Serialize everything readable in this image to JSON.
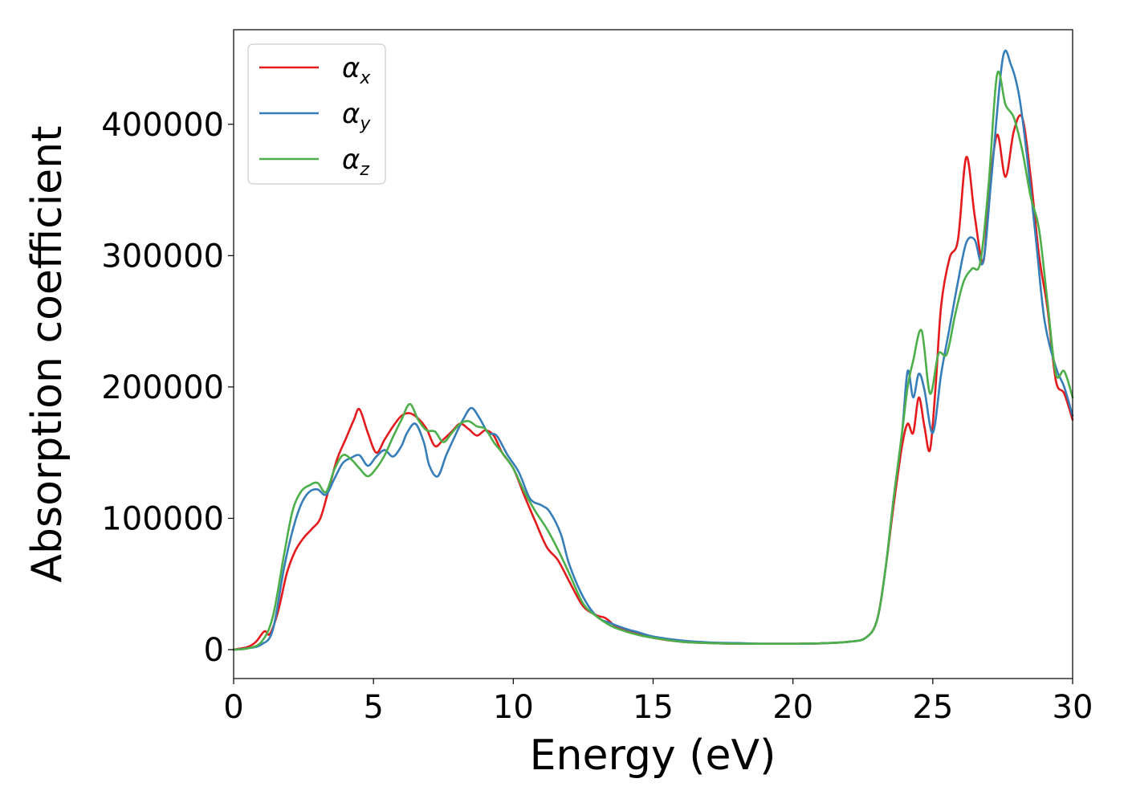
{
  "chart_data": {
    "type": "line",
    "xlabel": "Energy (eV)",
    "ylabel": "Absorption coefficient",
    "xlim": [
      0,
      30
    ],
    "ylim": [
      -22000,
      472000
    ],
    "xticks": [
      0,
      5,
      10,
      15,
      20,
      25,
      30
    ],
    "xtick_labels": [
      "0",
      "5",
      "10",
      "15",
      "20",
      "25",
      "30"
    ],
    "yticks": [
      0,
      100000,
      200000,
      300000,
      400000
    ],
    "ytick_labels": [
      "0",
      "100000",
      "200000",
      "300000",
      "400000"
    ],
    "grid": false,
    "legend_position": "upper-left",
    "series": [
      {
        "name_base": "α",
        "name_sub": "x",
        "color": "#e41a1c",
        "x": [
          0,
          0.5,
          0.8,
          1.1,
          1.3,
          1.6,
          1.9,
          2.2,
          2.5,
          2.8,
          3.1,
          3.4,
          3.7,
          4.0,
          4.3,
          4.5,
          4.8,
          5.1,
          5.4,
          5.7,
          6.0,
          6.3,
          6.6,
          6.9,
          7.2,
          7.5,
          7.8,
          8.1,
          8.4,
          8.7,
          9.0,
          9.3,
          9.6,
          10.0,
          10.4,
          10.8,
          11.2,
          11.6,
          12.0,
          12.5,
          13.0,
          13.3,
          13.7,
          14.0,
          14.5,
          15.0,
          16,
          17,
          18,
          19,
          20,
          21,
          22,
          22.6,
          23.0,
          23.3,
          23.6,
          23.9,
          24.1,
          24.3,
          24.5,
          24.7,
          24.9,
          25.1,
          25.3,
          25.6,
          25.9,
          26.2,
          26.5,
          26.8,
          27.0,
          27.3,
          27.6,
          27.9,
          28.2,
          28.5,
          28.8,
          29.1,
          29.4,
          29.7,
          30.0
        ],
        "y": [
          0,
          2000,
          6000,
          14000,
          12000,
          30000,
          58000,
          75000,
          85000,
          92000,
          100000,
          122000,
          145000,
          160000,
          175000,
          183000,
          165000,
          150000,
          160000,
          170000,
          178000,
          180000,
          176000,
          168000,
          155000,
          160000,
          166000,
          172000,
          168000,
          163000,
          167000,
          163000,
          150000,
          138000,
          117000,
          97000,
          78000,
          68000,
          52000,
          33000,
          26000,
          24000,
          17000,
          15000,
          12000,
          9000,
          6000,
          5000,
          4500,
          4500,
          4500,
          4800,
          6000,
          9000,
          22000,
          60000,
          110000,
          155000,
          172000,
          165000,
          192000,
          170000,
          152000,
          200000,
          262000,
          298000,
          312000,
          375000,
          330000,
          295000,
          345000,
          392000,
          360000,
          395000,
          405000,
          360000,
          300000,
          260000,
          205000,
          195000,
          175000
        ]
      },
      {
        "name_base": "α",
        "name_sub": "y",
        "color": "#377eb8",
        "x": [
          0,
          0.5,
          1.0,
          1.4,
          1.8,
          2.1,
          2.4,
          2.7,
          3.0,
          3.3,
          3.6,
          3.9,
          4.2,
          4.5,
          4.8,
          5.1,
          5.4,
          5.7,
          6.0,
          6.2,
          6.5,
          6.8,
          7.0,
          7.3,
          7.6,
          7.9,
          8.2,
          8.5,
          8.8,
          9.1,
          9.4,
          9.8,
          10.2,
          10.6,
          11.0,
          11.3,
          11.7,
          12.0,
          12.5,
          13.0,
          13.5,
          14.0,
          14.5,
          15.0,
          16,
          17,
          18,
          19,
          20,
          21,
          22,
          22.6,
          23.0,
          23.3,
          23.6,
          23.9,
          24.1,
          24.3,
          24.5,
          24.7,
          25.0,
          25.3,
          25.6,
          25.9,
          26.2,
          26.5,
          26.8,
          27.1,
          27.5,
          27.8,
          28.1,
          28.4,
          28.7,
          29.0,
          29.4,
          29.7,
          30.0
        ],
        "y": [
          0,
          1000,
          4000,
          15000,
          62000,
          90000,
          110000,
          120000,
          122000,
          118000,
          130000,
          142000,
          146000,
          148000,
          140000,
          147000,
          152000,
          147000,
          155000,
          165000,
          172000,
          158000,
          140000,
          132000,
          148000,
          162000,
          175000,
          184000,
          176000,
          165000,
          163000,
          148000,
          135000,
          115000,
          110000,
          105000,
          88000,
          65000,
          40000,
          25000,
          20000,
          16000,
          13000,
          10000,
          7000,
          5500,
          5000,
          4500,
          4500,
          4800,
          6000,
          9000,
          22000,
          60000,
          115000,
          165000,
          212000,
          192000,
          210000,
          198000,
          165000,
          210000,
          245000,
          280000,
          310000,
          312000,
          295000,
          360000,
          450000,
          445000,
          420000,
          370000,
          310000,
          250000,
          215000,
          200000,
          178000
        ]
      },
      {
        "name_base": "α",
        "name_sub": "z",
        "color": "#4daf4a",
        "x": [
          0,
          0.5,
          1.0,
          1.4,
          1.8,
          2.1,
          2.4,
          2.7,
          3.0,
          3.3,
          3.6,
          3.9,
          4.2,
          4.5,
          4.8,
          5.1,
          5.4,
          5.7,
          6.0,
          6.3,
          6.6,
          6.9,
          7.2,
          7.5,
          7.8,
          8.1,
          8.4,
          8.7,
          9.0,
          9.3,
          9.6,
          10.0,
          10.4,
          10.8,
          11.2,
          11.6,
          12.0,
          12.5,
          13.0,
          13.5,
          14.0,
          14.5,
          15.0,
          16,
          17,
          18,
          19,
          20,
          21,
          22,
          22.6,
          23.0,
          23.3,
          23.6,
          23.9,
          24.1,
          24.3,
          24.6,
          24.9,
          25.2,
          25.5,
          25.8,
          26.1,
          26.4,
          26.7,
          27.0,
          27.3,
          27.6,
          27.9,
          28.2,
          28.5,
          28.8,
          29.1,
          29.4,
          29.7,
          30.0
        ],
        "y": [
          0,
          1000,
          6000,
          25000,
          72000,
          105000,
          120000,
          125000,
          127000,
          120000,
          137000,
          148000,
          145000,
          138000,
          132000,
          138000,
          148000,
          162000,
          175000,
          187000,
          175000,
          167000,
          166000,
          158000,
          165000,
          172000,
          174000,
          170000,
          168000,
          158000,
          150000,
          138000,
          120000,
          105000,
          92000,
          76000,
          58000,
          35000,
          25000,
          18000,
          14000,
          11000,
          9000,
          6000,
          5000,
          4500,
          4500,
          4500,
          4800,
          6000,
          9000,
          22000,
          60000,
          115000,
          165000,
          200000,
          220000,
          243000,
          195000,
          225000,
          225000,
          255000,
          280000,
          290000,
          295000,
          355000,
          438000,
          415000,
          405000,
          380000,
          345000,
          320000,
          265000,
          210000,
          212000,
          192000
        ]
      }
    ]
  }
}
